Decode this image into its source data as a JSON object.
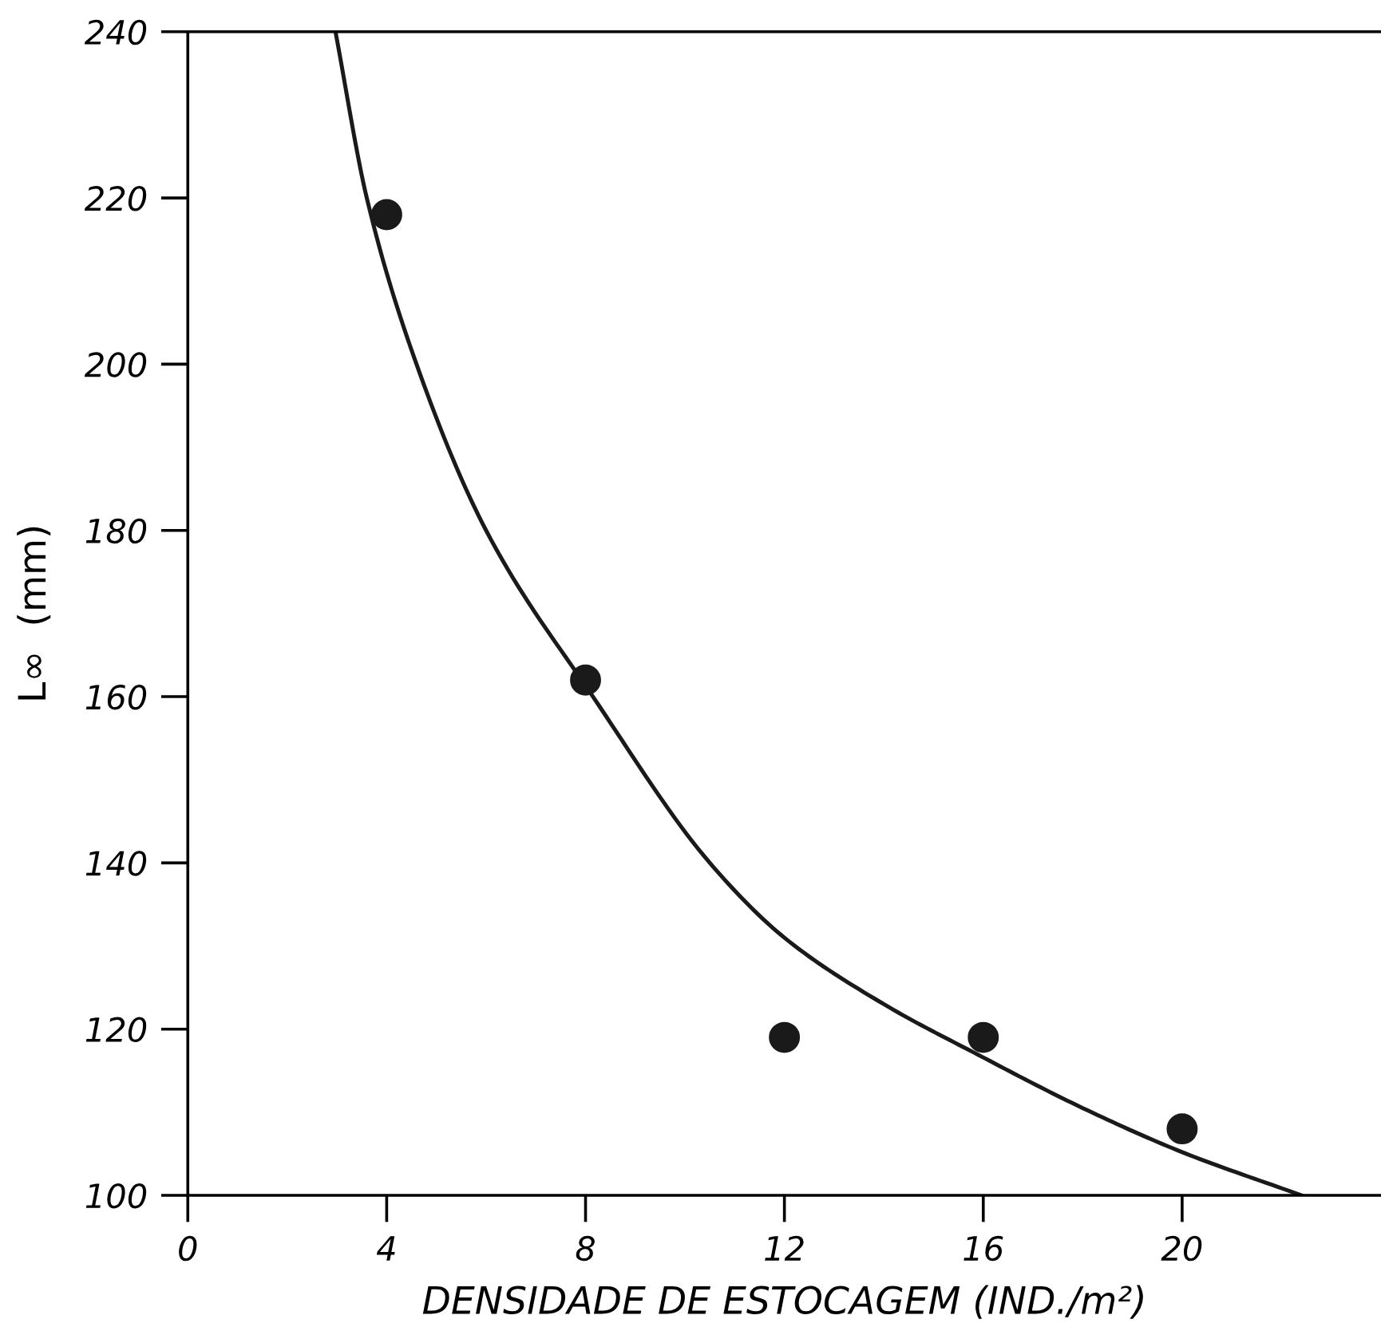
{
  "chart_data": {
    "type": "scatter",
    "xlabel": "DENSIDADE DE ESTOCAGEM (IND./m²)",
    "ylabel": "L∞  (mm)",
    "xlim": [
      0,
      24
    ],
    "ylim": [
      100,
      240
    ],
    "xticks": [
      0,
      4,
      8,
      12,
      16,
      20
    ],
    "yticks": [
      100,
      120,
      140,
      160,
      180,
      200,
      220,
      240
    ],
    "grid": false,
    "marker": "circle",
    "series": [
      {
        "color": "#1a1a1a",
        "x": [
          4,
          8,
          12,
          16,
          20
        ],
        "values": [
          218,
          162,
          119,
          119,
          108
        ]
      },
      {
        "type": "line",
        "color": "#1a1a1a",
        "marker": "none",
        "line_style": "solid",
        "x": [
          2.97,
          3.6,
          4.6,
          6.0,
          8.15,
          10.5,
          12,
          14,
          15.9,
          18,
          20,
          22.4
        ],
        "values": [
          240,
          220,
          200,
          180,
          160,
          140,
          131,
          123,
          116.9,
          110.5,
          105.2,
          100
        ]
      }
    ]
  }
}
